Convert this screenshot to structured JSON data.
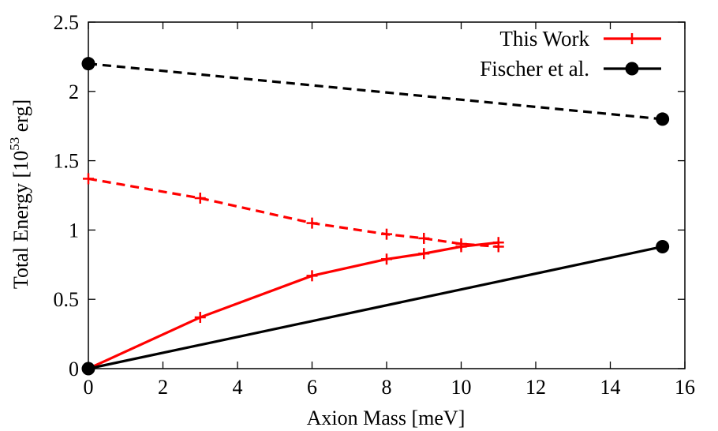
{
  "chart_data": {
    "type": "line",
    "xlabel": "Axion Mass [meV]",
    "ylabel": {
      "prefix": "Total Energy [10",
      "exponent": "53",
      "suffix": " erg]"
    },
    "xlim": [
      0,
      16
    ],
    "ylim": [
      0,
      2.5
    ],
    "x_ticks": [
      "0",
      "2",
      "4",
      "6",
      "8",
      "10",
      "12",
      "14",
      "16"
    ],
    "y_ticks": [
      "0",
      "0.5",
      "1",
      "1.5",
      "2",
      "2.5"
    ],
    "grid": false,
    "legend_position": "top-right",
    "series": [
      {
        "name": "This Work",
        "style": "solid",
        "marker": "plus",
        "color": "#ff0000",
        "x": [
          0,
          3,
          6,
          8,
          9,
          10,
          11
        ],
        "y": [
          0,
          0.37,
          0.67,
          0.79,
          0.83,
          0.88,
          0.91
        ]
      },
      {
        "name": "",
        "style": "dashed",
        "marker": "plus",
        "color": "#ff0000",
        "x": [
          0,
          3,
          6,
          8,
          9,
          10,
          11
        ],
        "y": [
          1.37,
          1.23,
          1.05,
          0.97,
          0.94,
          0.9,
          0.88
        ]
      },
      {
        "name": "Fischer et al.",
        "style": "solid",
        "marker": "circle",
        "color": "#000000",
        "x": [
          0,
          15.4
        ],
        "y": [
          0,
          0.88
        ]
      },
      {
        "name": "",
        "style": "dashed",
        "marker": "circle",
        "color": "#000000",
        "x": [
          0,
          15.4
        ],
        "y": [
          2.2,
          1.8
        ]
      }
    ]
  }
}
